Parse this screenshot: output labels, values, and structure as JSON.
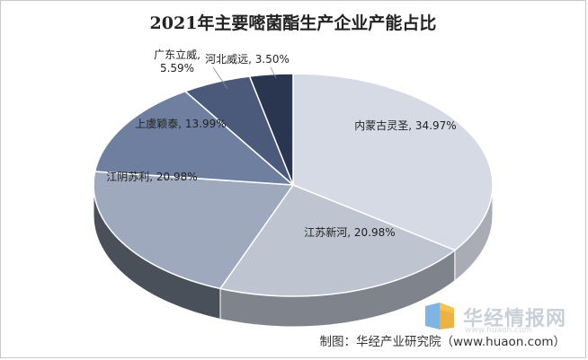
{
  "chart_data": {
    "type": "pie",
    "title": "2021年主要嘧菌酯生产企业产能占比",
    "slices": [
      {
        "label": "内蒙古灵圣, 34.97%",
        "value": 34.97,
        "color": "#d5dae4"
      },
      {
        "label": "江苏新河, 20.98%",
        "value": 20.98,
        "color": "#bec4d0"
      },
      {
        "label": "江阴苏利, 20.98%",
        "value": 20.98,
        "color": "#9ea9bd"
      },
      {
        "label": "上虞颖泰, 13.99%",
        "value": 13.99,
        "color": "#6f7fa0"
      },
      {
        "label": "广东立威,\n5.59%",
        "value": 5.59,
        "color": "#4b5a7a"
      },
      {
        "label": "河北威远, 3.50%",
        "value": 3.5,
        "color": "#2a3650"
      }
    ]
  },
  "source": "制图：华经产业研究院（www.huaon.com）",
  "watermark": {
    "name": "华经情报网",
    "url": "www.huaon.com"
  }
}
